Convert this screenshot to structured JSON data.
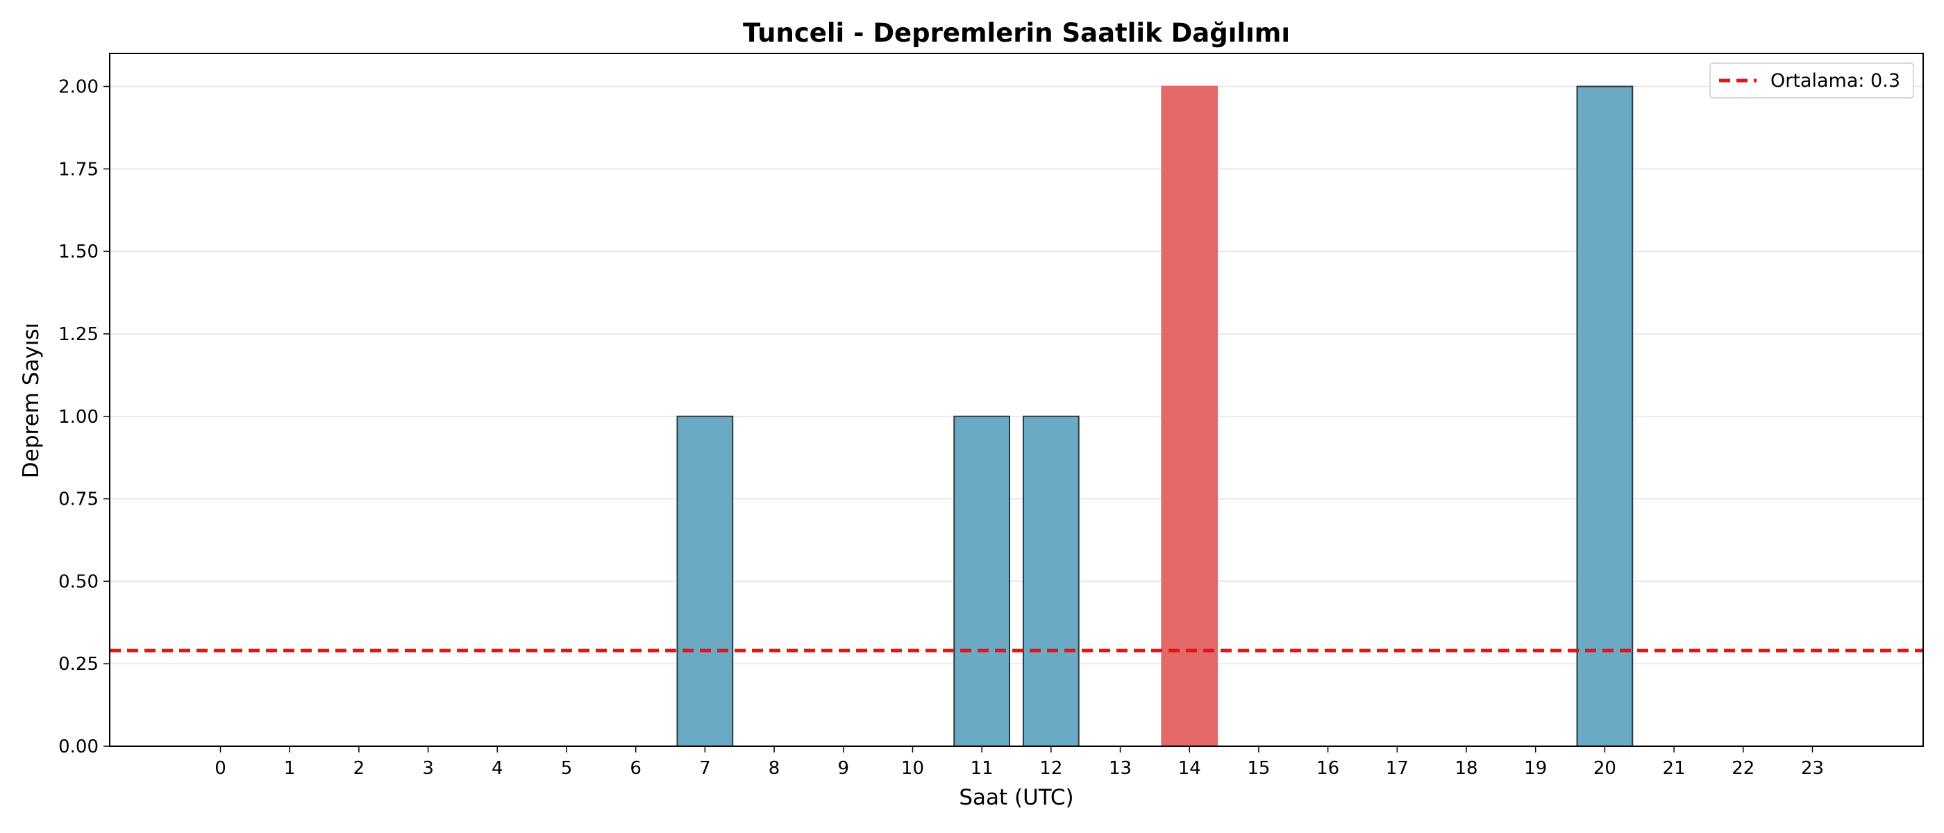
{
  "chart_data": {
    "type": "bar",
    "title": "Tunceli - Depremlerin Saatlik Dağılımı",
    "xlabel": "Saat (UTC)",
    "ylabel": "Deprem Sayısı",
    "categories": [
      "0",
      "1",
      "2",
      "3",
      "4",
      "5",
      "6",
      "7",
      "8",
      "9",
      "10",
      "11",
      "12",
      "13",
      "14",
      "15",
      "16",
      "17",
      "18",
      "19",
      "20",
      "21",
      "22",
      "23"
    ],
    "values": [
      0,
      0,
      0,
      0,
      0,
      0,
      0,
      1,
      0,
      0,
      0,
      1,
      1,
      0,
      2,
      0,
      0,
      0,
      0,
      0,
      2,
      0,
      0,
      0
    ],
    "highlight_index": 14,
    "ylim": [
      0,
      2.1
    ],
    "yticks": [
      "0.00",
      "0.25",
      "0.50",
      "0.75",
      "1.00",
      "1.25",
      "1.50",
      "1.75",
      "2.00"
    ],
    "mean_line": {
      "value": 0.29,
      "label": "Ortalama: 0.3"
    },
    "grid": "y",
    "legend_position": "top-right",
    "colors": {
      "bar": "#6aaac4",
      "highlight": "#e36868",
      "mean": "#ee1111",
      "edge": "#2b3a40"
    }
  }
}
